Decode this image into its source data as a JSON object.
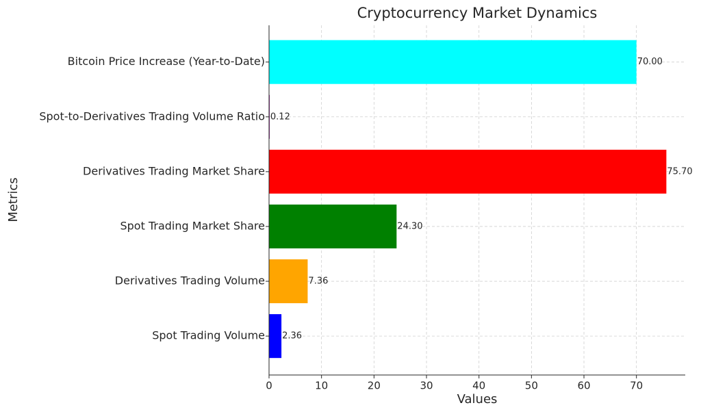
{
  "chart_data": {
    "type": "barh",
    "title": "Cryptocurrency Market Dynamics",
    "x_label": "Values",
    "y_label": "Metrics",
    "categories": [
      "Spot Trading Volume",
      "Derivatives Trading Volume",
      "Spot Trading Market Share",
      "Derivatives Trading Market Share",
      "Spot-to-Derivatives Trading Volume Ratio",
      "Bitcoin Price Increase (Year-to-Date)"
    ],
    "values": [
      2.36,
      7.36,
      24.3,
      75.7,
      0.12,
      70
    ],
    "value_labels": [
      "2.36",
      "7.36",
      "24.30",
      "75.70",
      "0.12",
      "70.00"
    ],
    "colors": [
      "blue",
      "orange",
      "green",
      "red",
      "purple",
      "cyan"
    ],
    "xlim": [
      0,
      79.3
    ],
    "xticks": [
      0,
      10,
      20,
      30,
      40,
      50,
      60,
      70
    ],
    "grid": true
  }
}
